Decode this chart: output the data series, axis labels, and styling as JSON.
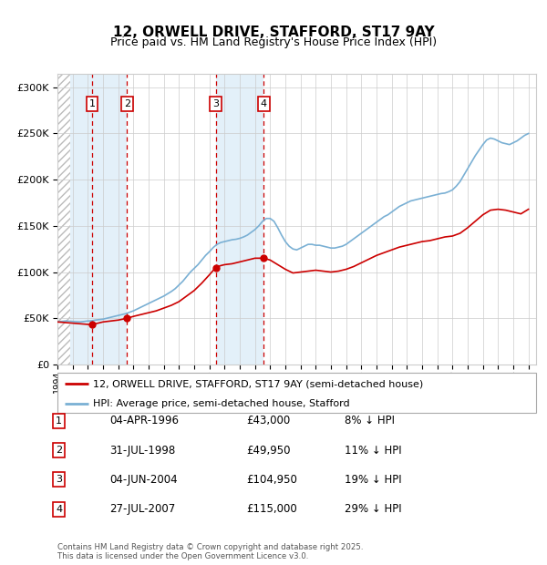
{
  "title": "12, ORWELL DRIVE, STAFFORD, ST17 9AY",
  "subtitle": "Price paid vs. HM Land Registry's House Price Index (HPI)",
  "ytick_vals": [
    0,
    50000,
    100000,
    150000,
    200000,
    250000,
    300000
  ],
  "ylim": [
    0,
    315000
  ],
  "xlim_start": 1994.0,
  "xlim_end": 2025.5,
  "transactions": [
    {
      "label": "1",
      "date": 1996.27,
      "price": 43000
    },
    {
      "label": "2",
      "date": 1998.58,
      "price": 49950
    },
    {
      "label": "3",
      "date": 2004.42,
      "price": 104950
    },
    {
      "label": "4",
      "date": 2007.57,
      "price": 115000
    }
  ],
  "transaction_info": [
    {
      "num": "1",
      "date": "04-APR-1996",
      "price": "£43,000",
      "hpi": "8% ↓ HPI"
    },
    {
      "num": "2",
      "date": "31-JUL-1998",
      "price": "£49,950",
      "hpi": "11% ↓ HPI"
    },
    {
      "num": "3",
      "date": "04-JUN-2004",
      "price": "£104,950",
      "hpi": "19% ↓ HPI"
    },
    {
      "num": "4",
      "date": "27-JUL-2007",
      "price": "£115,000",
      "hpi": "29% ↓ HPI"
    }
  ],
  "legend_entries": [
    {
      "label": "12, ORWELL DRIVE, STAFFORD, ST17 9AY (semi-detached house)",
      "color": "#cc0000"
    },
    {
      "label": "HPI: Average price, semi-detached house, Stafford",
      "color": "#7ab0d4"
    }
  ],
  "footer": "Contains HM Land Registry data © Crown copyright and database right 2025.\nThis data is licensed under the Open Government Licence v3.0.",
  "hpi_x": [
    1994.0,
    1994.25,
    1994.5,
    1994.75,
    1995.0,
    1995.25,
    1995.5,
    1995.75,
    1996.0,
    1996.25,
    1996.5,
    1996.75,
    1997.0,
    1997.25,
    1997.5,
    1997.75,
    1998.0,
    1998.25,
    1998.5,
    1998.75,
    1999.0,
    1999.25,
    1999.5,
    1999.75,
    2000.0,
    2000.25,
    2000.5,
    2000.75,
    2001.0,
    2001.25,
    2001.5,
    2001.75,
    2002.0,
    2002.25,
    2002.5,
    2002.75,
    2003.0,
    2003.25,
    2003.5,
    2003.75,
    2004.0,
    2004.25,
    2004.5,
    2004.75,
    2005.0,
    2005.25,
    2005.5,
    2005.75,
    2006.0,
    2006.25,
    2006.5,
    2006.75,
    2007.0,
    2007.25,
    2007.5,
    2007.75,
    2008.0,
    2008.25,
    2008.5,
    2008.75,
    2009.0,
    2009.25,
    2009.5,
    2009.75,
    2010.0,
    2010.25,
    2010.5,
    2010.75,
    2011.0,
    2011.25,
    2011.5,
    2011.75,
    2012.0,
    2012.25,
    2012.5,
    2012.75,
    2013.0,
    2013.25,
    2013.5,
    2013.75,
    2014.0,
    2014.25,
    2014.5,
    2014.75,
    2015.0,
    2015.25,
    2015.5,
    2015.75,
    2016.0,
    2016.25,
    2016.5,
    2016.75,
    2017.0,
    2017.25,
    2017.5,
    2017.75,
    2018.0,
    2018.25,
    2018.5,
    2018.75,
    2019.0,
    2019.25,
    2019.5,
    2019.75,
    2020.0,
    2020.25,
    2020.5,
    2020.75,
    2021.0,
    2021.25,
    2021.5,
    2021.75,
    2022.0,
    2022.25,
    2022.5,
    2022.75,
    2023.0,
    2023.25,
    2023.5,
    2023.75,
    2024.0,
    2024.25,
    2024.5,
    2024.75,
    2025.0
  ],
  "hpi_y": [
    46000,
    46500,
    47000,
    46800,
    46500,
    46200,
    46000,
    46500,
    47000,
    47200,
    48000,
    48500,
    49000,
    50000,
    51000,
    52000,
    53000,
    54000,
    55000,
    56500,
    58000,
    60000,
    62000,
    64000,
    66000,
    68000,
    70000,
    72000,
    74000,
    76500,
    79000,
    82000,
    86000,
    90000,
    95000,
    100000,
    104000,
    108000,
    113000,
    118000,
    122000,
    126500,
    130000,
    132000,
    133000,
    134000,
    135000,
    135500,
    136500,
    138000,
    140000,
    143000,
    146000,
    150000,
    155000,
    158000,
    158000,
    155000,
    148000,
    140000,
    133000,
    128000,
    125000,
    124000,
    126000,
    128000,
    130000,
    130000,
    129000,
    129000,
    128000,
    127000,
    126000,
    126000,
    127000,
    128000,
    130000,
    133000,
    136000,
    139000,
    142000,
    145000,
    148000,
    151000,
    154000,
    157000,
    160000,
    162000,
    165000,
    168000,
    171000,
    173000,
    175000,
    177000,
    178000,
    179000,
    180000,
    181000,
    182000,
    183000,
    184000,
    185000,
    185500,
    187000,
    189000,
    193000,
    198000,
    205000,
    212000,
    219000,
    226000,
    232000,
    238000,
    243000,
    245000,
    244000,
    242000,
    240000,
    239000,
    238000,
    240000,
    242000,
    245000,
    248000,
    250000
  ],
  "property_x": [
    1994.0,
    1996.27,
    1996.5,
    1997.0,
    1997.5,
    1998.0,
    1998.58,
    1999.0,
    1999.5,
    2000.0,
    2000.5,
    2001.0,
    2001.5,
    2002.0,
    2002.5,
    2003.0,
    2003.5,
    2004.0,
    2004.42,
    2004.75,
    2005.0,
    2005.5,
    2006.0,
    2006.5,
    2007.0,
    2007.57,
    2008.0,
    2008.5,
    2009.0,
    2009.5,
    2010.0,
    2010.5,
    2011.0,
    2011.5,
    2012.0,
    2012.5,
    2013.0,
    2013.5,
    2014.0,
    2014.5,
    2015.0,
    2015.5,
    2016.0,
    2016.5,
    2017.0,
    2017.5,
    2018.0,
    2018.5,
    2019.0,
    2019.5,
    2020.0,
    2020.5,
    2021.0,
    2021.5,
    2022.0,
    2022.5,
    2023.0,
    2023.5,
    2024.0,
    2024.5,
    2025.0
  ],
  "property_y": [
    46000,
    43000,
    44000,
    46000,
    47000,
    48000,
    49950,
    52000,
    54000,
    56000,
    58000,
    61000,
    64000,
    68000,
    74000,
    80000,
    88000,
    97000,
    104950,
    107000,
    108000,
    109000,
    111000,
    113000,
    115000,
    115000,
    113000,
    108000,
    103000,
    99000,
    100000,
    101000,
    102000,
    101000,
    100000,
    101000,
    103000,
    106000,
    110000,
    114000,
    118000,
    121000,
    124000,
    127000,
    129000,
    131000,
    133000,
    134000,
    136000,
    138000,
    139000,
    142000,
    148000,
    155000,
    162000,
    167000,
    168000,
    167000,
    165000,
    163000,
    168000
  ],
  "bg_hatch_end": 1994.83,
  "shade_regions": [
    {
      "start": 1994.83,
      "end": 1998.58
    },
    {
      "start": 2004.42,
      "end": 2007.57
    }
  ]
}
